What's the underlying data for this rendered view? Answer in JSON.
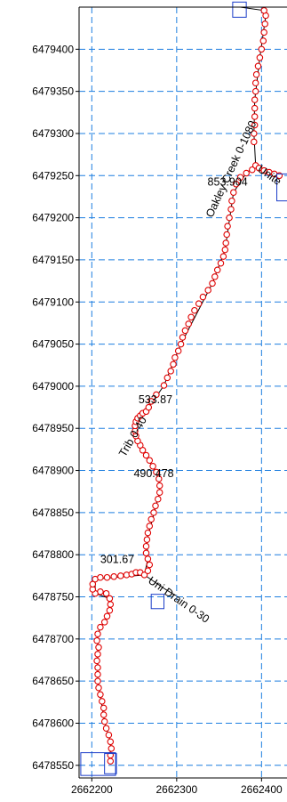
{
  "chart_data": {
    "type": "scatter",
    "title": "",
    "xlabel": "",
    "ylabel": "",
    "xlim": [
      2662185,
      2662430
    ],
    "ylim": [
      6478535,
      6479450
    ],
    "grid": true,
    "x_ticks": [
      2662200,
      2662300,
      2662400
    ],
    "x_tick_labels": [
      "2662200",
      "2662300",
      "2662400"
    ],
    "y_ticks": [
      6478550,
      6478600,
      6478650,
      6478700,
      6478750,
      6478800,
      6478850,
      6478900,
      6478950,
      6479000,
      6479050,
      6479100,
      6479150,
      6479200,
      6479250,
      6479300,
      6479350,
      6479400
    ],
    "y_tick_labels": [
      "6478550",
      "6478600",
      "6478650",
      "6478700",
      "6478750",
      "6478800",
      "6478850",
      "6478900",
      "6478950",
      "6479000",
      "6479050",
      "6479100",
      "6479150",
      "6479200",
      "6479250",
      "6479300",
      "6479350",
      "6479400"
    ],
    "series": [
      {
        "points": [
          [
            2662222,
            6478555
          ],
          [
            2662222,
            6478562
          ],
          [
            2662223,
            6478570
          ],
          [
            2662222,
            6478578
          ],
          [
            2662220,
            6478586
          ],
          [
            2662217,
            6478594
          ],
          [
            2662215,
            6478602
          ],
          [
            2662214,
            6478610
          ],
          [
            2662214,
            6478618
          ],
          [
            2662212,
            6478626
          ],
          [
            2662210,
            6478634
          ],
          [
            2662208,
            6478642
          ],
          [
            2662207,
            6478650
          ],
          [
            2662207,
            6478658
          ],
          [
            2662207,
            6478666
          ],
          [
            2662206,
            6478674
          ],
          [
            2662207,
            6478682
          ],
          [
            2662208,
            6478690
          ],
          [
            2662206,
            6478698
          ],
          [
            2662207,
            6478706
          ],
          [
            2662210,
            6478714
          ],
          [
            2662215,
            6478720
          ],
          [
            2662218,
            6478727
          ],
          [
            2662221,
            6478734
          ],
          [
            2662222,
            6478741
          ],
          [
            2662221,
            6478748
          ],
          [
            2662217,
            6478754
          ],
          [
            2662210,
            6478756
          ],
          [
            2662204,
            6478754
          ],
          [
            2662201,
            6478759
          ],
          [
            2662201,
            6478765
          ],
          [
            2662204,
            6478771
          ],
          [
            2662210,
            6478773
          ],
          [
            2662218,
            6478773
          ],
          [
            2662226,
            6478774
          ],
          [
            2662234,
            6478775
          ],
          [
            2662241,
            6478776
          ],
          [
            2662247,
            6478777
          ],
          [
            2662252,
            6478779
          ],
          [
            2662257,
            6478779
          ],
          [
            2662262,
            6478776
          ],
          [
            2662266,
            6478781
          ],
          [
            2662268,
            6478788
          ],
          [
            2662266,
            6478795
          ],
          [
            2662264,
            6478802
          ],
          [
            2662264,
            6478810
          ],
          [
            2662265,
            6478818
          ],
          [
            2662266,
            6478826
          ],
          [
            2662268,
            6478834
          ],
          [
            2662270,
            6478842
          ],
          [
            2662273,
            6478850
          ],
          [
            2662275,
            6478858
          ],
          [
            2662278,
            6478866
          ],
          [
            2662280,
            6478874
          ],
          [
            2662280,
            6478882
          ],
          [
            2662279,
            6478890
          ],
          [
            2662276,
            6478898
          ],
          [
            2662272,
            6478905
          ],
          [
            2662268,
            6478912
          ],
          [
            2662264,
            6478918
          ],
          [
            2662260,
            6478924
          ],
          [
            2662257,
            6478930
          ],
          [
            2662254,
            6478935
          ],
          [
            2662252,
            6478941
          ],
          [
            2662251,
            6478947
          ],
          [
            2662251,
            6478953
          ],
          [
            2662252,
            6478958
          ],
          [
            2662254,
            6478962
          ],
          [
            2662257,
            6478965
          ],
          [
            2662260,
            6478968
          ],
          [
            2662264,
            6478970
          ],
          [
            2662267,
            6478975
          ],
          [
            2662270,
            6478982
          ],
          [
            2662276,
            6478990
          ],
          [
            2662285,
            6479001
          ],
          [
            2662289,
            6479010
          ],
          [
            2662293,
            6479018
          ],
          [
            2662296,
            6479026
          ],
          [
            2662298,
            6479034
          ],
          [
            2662302,
            6479042
          ],
          [
            2662305,
            6479050
          ],
          [
            2662307,
            6479058
          ],
          [
            2662310,
            6479066
          ],
          [
            2662314,
            6479074
          ],
          [
            2662317,
            6479082
          ],
          [
            2662321,
            6479090
          ],
          [
            2662326,
            6479098
          ],
          [
            2662331,
            6479106
          ],
          [
            2662337,
            6479114
          ],
          [
            2662342,
            6479122
          ],
          [
            2662345,
            6479130
          ],
          [
            2662348,
            6479138
          ],
          [
            2662352,
            6479146
          ],
          [
            2662355,
            6479154
          ],
          [
            2662357,
            6479162
          ],
          [
            2662358,
            6479170
          ],
          [
            2662359,
            6479180
          ],
          [
            2662360,
            6479190
          ],
          [
            2662362,
            6479200
          ],
          [
            2662364,
            6479210
          ],
          [
            2662365,
            6479220
          ],
          [
            2662367,
            6479230
          ],
          [
            2662370,
            6479240
          ],
          [
            2662375,
            6479248
          ],
          [
            2662382,
            6479253
          ],
          [
            2662389,
            6479257
          ],
          [
            2662393,
            6479262
          ],
          [
            2662397,
            6479259
          ],
          [
            2662403,
            6479256
          ],
          [
            2662409,
            6479254
          ],
          [
            2662415,
            6479252
          ],
          [
            2662421,
            6479250
          ],
          [
            2662391,
            6479290
          ],
          [
            2662391,
            6479300
          ],
          [
            2662392,
            6479310
          ],
          [
            2662392,
            6479320
          ],
          [
            2662392,
            6479330
          ],
          [
            2662392,
            6479340
          ],
          [
            2662393,
            6479350
          ],
          [
            2662393,
            6479360
          ],
          [
            2662394,
            6479370
          ],
          [
            2662396,
            6479380
          ],
          [
            2662398,
            6479390
          ],
          [
            2662400,
            6479400
          ],
          [
            2662402,
            6479410
          ],
          [
            2662403,
            6479420
          ],
          [
            2662404,
            6479430
          ],
          [
            2662405,
            6479440
          ],
          [
            2662403,
            6479446
          ]
        ]
      }
    ],
    "reaches": [
      {
        "points": [
          [
            2662222,
            6478555
          ],
          [
            2662222,
            6478578
          ],
          [
            2662215,
            6478602
          ],
          [
            2662207,
            6478650
          ],
          [
            2662207,
            6478706
          ],
          [
            2662221,
            6478734
          ],
          [
            2662221,
            6478748
          ],
          [
            2662204,
            6478754
          ],
          [
            2662204,
            6478771
          ],
          [
            2662262,
            6478776
          ],
          [
            2662266,
            6478795
          ],
          [
            2662265,
            6478818
          ],
          [
            2662280,
            6478874
          ],
          [
            2662279,
            6478890
          ],
          [
            2662264,
            6478918
          ],
          [
            2662251,
            6478947
          ],
          [
            2662254,
            6478962
          ],
          [
            2662264,
            6478970
          ],
          [
            2662285,
            6479001
          ],
          [
            2662305,
            6479050
          ],
          [
            2662342,
            6479122
          ],
          [
            2662357,
            6479162
          ],
          [
            2662367,
            6479230
          ],
          [
            2662382,
            6479253
          ],
          [
            2662393,
            6479262
          ]
        ]
      },
      {
        "points": [
          [
            2662393,
            6479262
          ],
          [
            2662421,
            6479250
          ]
        ]
      },
      {
        "points": [
          [
            2662393,
            6479262
          ],
          [
            2662391,
            6479300
          ],
          [
            2662392,
            6479340
          ],
          [
            2662398,
            6479390
          ],
          [
            2662405,
            6479440
          ],
          [
            2662403,
            6479446
          ],
          [
            2662375,
            6479450
          ]
        ]
      },
      {
        "points": [
          [
            2662262,
            6478776
          ],
          [
            2662285,
            6478760
          ],
          [
            2662298,
            6478752
          ]
        ]
      }
    ],
    "structures": [
      {
        "x": [
          2662187,
          2662228
        ],
        "y": [
          6478538,
          6478565
        ]
      },
      {
        "x": [
          2662215,
          2662229
        ],
        "y": [
          6478540,
          6478564
        ]
      },
      {
        "x": [
          2662270,
          2662285
        ],
        "y": [
          6478736,
          6478753
        ]
      },
      {
        "x": [
          2662366,
          2662382
        ],
        "y": [
          6479438,
          6479456
        ]
      },
      {
        "x": [
          2662418,
          2662432
        ],
        "y": [
          6479220,
          6479252
        ]
      }
    ],
    "annotations": [
      {
        "text": "Oakley Creek  0-1080",
        "x": 2662368,
        "y": 6479256,
        "angle": -65
      },
      {
        "text": "853.904",
        "x": 2662360,
        "y": 6479238,
        "angle": 0
      },
      {
        "text": "Unite",
        "x": 2662407,
        "y": 6479247,
        "angle": 35
      },
      {
        "text": "533.87",
        "x": 2662275,
        "y": 6478980,
        "angle": 0
      },
      {
        "text": "Trib  0-40",
        "x": 2662252,
        "y": 6478938,
        "angle": -60
      },
      {
        "text": "490.478",
        "x": 2662273,
        "y": 6478892,
        "angle": 0
      },
      {
        "text": "301.67",
        "x": 2662230,
        "y": 6478790,
        "angle": 0
      },
      {
        "text": "Uni  Drain  0-30",
        "x": 2662300,
        "y": 6478743,
        "angle": 35
      }
    ],
    "colors": {
      "grid": "#1e7fe0",
      "marker_edge": "#e00000",
      "reach_line": "#000000",
      "structure": "#1a3cc8",
      "axis": "#000000"
    }
  }
}
